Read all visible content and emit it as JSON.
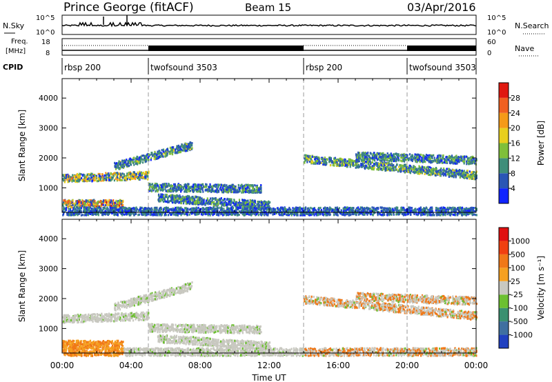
{
  "header": {
    "station": "Prince George (fitACF)",
    "beam": "Beam 15",
    "date": "03/Apr/2016"
  },
  "top_panels": {
    "nsky_label": "N.Sky",
    "nsky_ticks": [
      "10^5",
      "10^0"
    ],
    "nsearch_label": "N.Search",
    "nsearch_ticks": [
      "10^5",
      "10^0"
    ],
    "freq_label_1": "Freq.",
    "freq_label_2": "[MHz]",
    "freq_ticks": [
      "18",
      "8"
    ],
    "nave_label": "Nave",
    "nave_ticks": [
      "60",
      "0"
    ],
    "cpid_label": "CPID",
    "cpid_segments": [
      {
        "name": "rbsp 200",
        "start_hour": 0
      },
      {
        "name": "twofsound 3503",
        "start_hour": 5
      },
      {
        "name": "rbsp 200",
        "start_hour": 14
      },
      {
        "name": "twofsound 3503",
        "start_hour": 20
      }
    ]
  },
  "time_axis": {
    "label": "Time UT",
    "ticks": [
      "00:00",
      "04:00",
      "08:00",
      "12:00",
      "16:00",
      "20:00",
      "00:00"
    ]
  },
  "chart_data": [
    {
      "type": "heatmap",
      "parameter": "power",
      "ylabel": "Slant Range [km]",
      "yticks": [
        "1000",
        "2000",
        "3000",
        "4000"
      ],
      "ylim": [
        180,
        4650
      ],
      "xlim_hours": [
        0,
        24
      ],
      "colorbar_label": "Power [dB]",
      "colorbar_ticks": [
        "28",
        "24",
        "20",
        "16",
        "12",
        "8",
        "4"
      ],
      "colors": [
        "#1024ff",
        "#2a56b5",
        "#3f8e7a",
        "#7fbf3a",
        "#e8cf1e",
        "#f59a18",
        "#f06020",
        "#e01810"
      ],
      "scatter_bands": [
        {
          "from_hour": 0,
          "to_hour": 5,
          "range_start": 1350,
          "range_end": 1450,
          "intensity": 0.7
        },
        {
          "from_hour": 0,
          "to_hour": 3.5,
          "range_start": 500,
          "range_end": 500,
          "intensity": 0.85
        },
        {
          "from_hour": 3,
          "to_hour": 7.5,
          "range_start": 1750,
          "range_end": 2450,
          "intensity": 0.45
        },
        {
          "from_hour": 5,
          "to_hour": 11.5,
          "range_start": 1050,
          "range_end": 1000,
          "intensity": 0.4
        },
        {
          "from_hour": 5.5,
          "to_hour": 12,
          "range_start": 700,
          "range_end": 450,
          "intensity": 0.4
        },
        {
          "from_hour": 14,
          "to_hour": 24,
          "range_start": 2000,
          "range_end": 1450,
          "intensity": 0.5
        },
        {
          "from_hour": 17,
          "to_hour": 24,
          "range_start": 2100,
          "range_end": 1950,
          "intensity": 0.4
        },
        {
          "from_hour": 0,
          "to_hour": 24,
          "range_start": 250,
          "range_end": 250,
          "intensity": 0.3
        }
      ]
    },
    {
      "type": "heatmap",
      "parameter": "velocity",
      "ylabel": "Slant Range [km]",
      "yticks": [
        "1000",
        "2000",
        "3000",
        "4000"
      ],
      "ylim": [
        180,
        4650
      ],
      "xlim_hours": [
        0,
        24
      ],
      "colorbar_label": "Velocity [m s⁻¹]",
      "colorbar_ticks": [
        "1000",
        "500",
        "100",
        "25",
        "-25",
        "-100",
        "-500",
        "-1000"
      ],
      "colors": [
        "#2040c0",
        "#3f6fa0",
        "#3a9070",
        "#6cc030",
        "#c8c8c0",
        "#f5a020",
        "#f07818",
        "#f04010",
        "#e01010"
      ]
    }
  ]
}
